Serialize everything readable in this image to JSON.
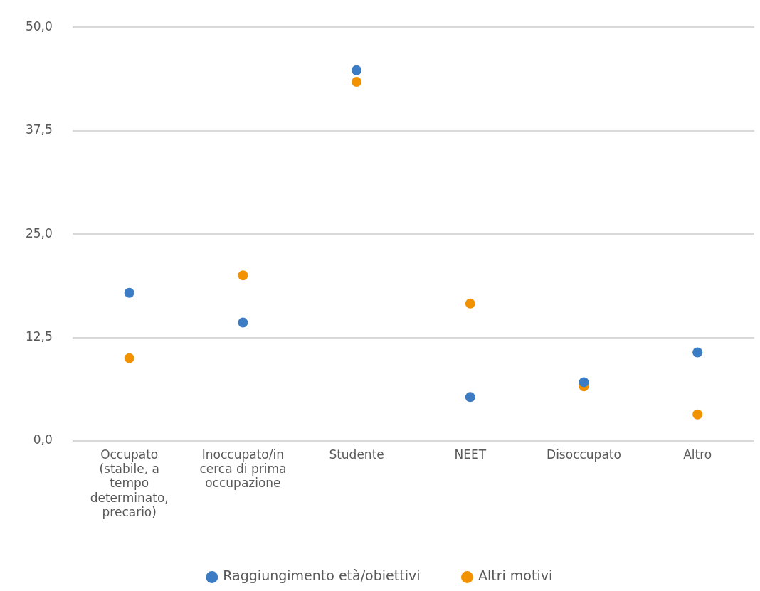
{
  "chart_data": {
    "type": "scatter",
    "categories": [
      "Occupato (stabile, a tempo determinato, precario)",
      "Inoccupato/in cerca di prima occupazione",
      "Studente",
      "NEET",
      "Disoccupato",
      "Altro"
    ],
    "series": [
      {
        "name": "Raggiungimento età/obiettivi",
        "color": "#3b7cc4",
        "values": [
          17.9,
          14.3,
          44.8,
          5.3,
          7.1,
          10.7
        ]
      },
      {
        "name": "Altri motivi",
        "color": "#f39200",
        "values": [
          10.0,
          20.0,
          43.4,
          16.6,
          6.6,
          3.2
        ]
      }
    ],
    "ylim": [
      0,
      50
    ],
    "yticks": [
      {
        "value": 0,
        "label": "0,0"
      },
      {
        "value": 12.5,
        "label": "12,5"
      },
      {
        "value": 25,
        "label": "25,0"
      },
      {
        "value": 37.5,
        "label": "37,5"
      },
      {
        "value": 50,
        "label": "50,0"
      }
    ],
    "grid": "y",
    "legend": "bottom",
    "marker": "circle"
  }
}
